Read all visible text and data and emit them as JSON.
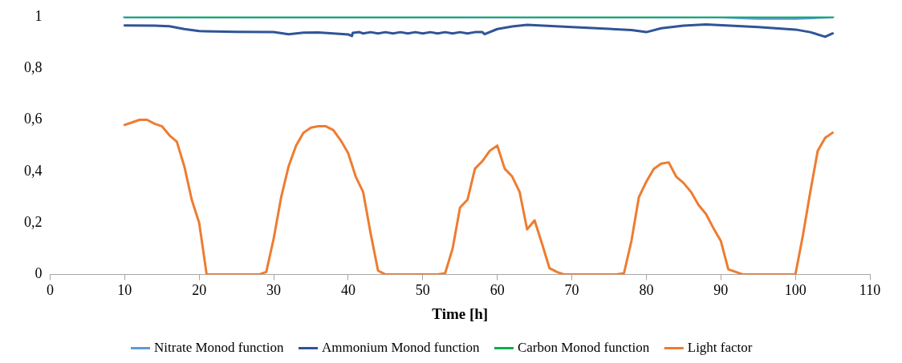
{
  "chart_data": {
    "type": "line",
    "xlabel": "Time [h]",
    "xlim": [
      0,
      110
    ],
    "xticks": [
      0,
      10,
      20,
      30,
      40,
      50,
      60,
      70,
      80,
      90,
      100,
      110
    ],
    "ylim": [
      0,
      1
    ],
    "yticks": [
      0,
      {
        "value": 0.2,
        "label": "0,2"
      },
      {
        "value": 0.4,
        "label": "0,4"
      },
      {
        "value": 0.6,
        "label": "0,6"
      },
      {
        "value": 0.8,
        "label": "0,8"
      },
      1
    ],
    "grid": false,
    "legend": "bottom",
    "marker": "none",
    "line_style": "solid",
    "series": [
      {
        "name": "Nitrate Monod function",
        "color": "#5b9bd5",
        "x": [
          10,
          90,
          95,
          100,
          105
        ],
        "values": [
          1,
          1,
          0.995,
          0.995,
          1
        ]
      },
      {
        "name": "Ammonium Monod function",
        "color": "#2f5597",
        "x": [
          10,
          14,
          16,
          18,
          20,
          25,
          30,
          32,
          34,
          36,
          40,
          40.5,
          40.6,
          41.5,
          42,
          43,
          44,
          45,
          46,
          47,
          48,
          49,
          50,
          51,
          52,
          53,
          54,
          55,
          56,
          57,
          58,
          58.3,
          60,
          62,
          64,
          70,
          78,
          80,
          82,
          85,
          88,
          95,
          100,
          102,
          104,
          105
        ],
        "values": [
          0.966,
          0.965,
          0.963,
          0.952,
          0.944,
          0.941,
          0.94,
          0.932,
          0.938,
          0.939,
          0.931,
          0.925,
          0.937,
          0.94,
          0.935,
          0.94,
          0.935,
          0.94,
          0.935,
          0.94,
          0.935,
          0.94,
          0.935,
          0.94,
          0.935,
          0.94,
          0.935,
          0.94,
          0.935,
          0.94,
          0.94,
          0.932,
          0.952,
          0.962,
          0.968,
          0.96,
          0.948,
          0.94,
          0.955,
          0.965,
          0.97,
          0.96,
          0.95,
          0.94,
          0.922,
          0.935
        ]
      },
      {
        "name": "Carbon Monod function",
        "color": "#00b050",
        "x": [
          10,
          30,
          60,
          70,
          80,
          90,
          100,
          105
        ],
        "values": [
          1,
          0.999,
          1,
          0.999,
          0.999,
          1,
          0.999,
          1
        ]
      },
      {
        "name": "Light factor",
        "color": "#ed7d31",
        "x": [
          10,
          11,
          12,
          13,
          14,
          15,
          16,
          17,
          18,
          19,
          20,
          21,
          28,
          29,
          30,
          31,
          32,
          33,
          34,
          35,
          36,
          37,
          38,
          39,
          40,
          41,
          42,
          43,
          44,
          45,
          52,
          53,
          54,
          55,
          56,
          57,
          58,
          59,
          60,
          61,
          62,
          63,
          64,
          65,
          66,
          67,
          68,
          69,
          76,
          77,
          78,
          79,
          80,
          81,
          82,
          83,
          84,
          85,
          86,
          87,
          88,
          89,
          90,
          91,
          92,
          93,
          100,
          101,
          102,
          103,
          104,
          105
        ],
        "values": [
          0.58,
          0.59,
          0.6,
          0.6,
          0.585,
          0.575,
          0.54,
          0.515,
          0.42,
          0.29,
          0.2,
          0,
          0,
          0.01,
          0.14,
          0.3,
          0.42,
          0.5,
          0.55,
          0.57,
          0.575,
          0.575,
          0.56,
          0.52,
          0.47,
          0.38,
          0.32,
          0.16,
          0.015,
          0,
          0,
          0.005,
          0.1,
          0.26,
          0.29,
          0.41,
          0.44,
          0.48,
          0.5,
          0.41,
          0.38,
          0.32,
          0.175,
          0.21,
          0.12,
          0.025,
          0.01,
          0,
          0,
          0.005,
          0.13,
          0.3,
          0.36,
          0.41,
          0.43,
          0.435,
          0.38,
          0.355,
          0.32,
          0.27,
          0.235,
          0.18,
          0.13,
          0.02,
          0.01,
          0,
          0,
          0.15,
          0.32,
          0.48,
          0.53,
          0.55
        ]
      }
    ]
  }
}
